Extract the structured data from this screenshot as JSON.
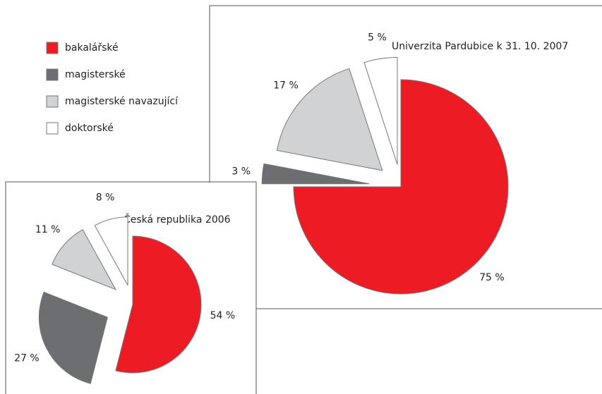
{
  "legend": {
    "categories": [
      "bakalářské",
      "magisterské",
      "magisterské navazující",
      "doktorské"
    ],
    "colors": [
      "#ed1c24",
      "#6d6e71",
      "#d1d2d4",
      "#ffffff"
    ]
  },
  "chart_data": [
    {
      "type": "pie",
      "title": "Univerzita Pardubice k 31. 10. 2007",
      "values": [
        75,
        3,
        17,
        5
      ],
      "value_labels": [
        "75 %",
        "3 %",
        "17 %",
        "5 %"
      ]
    },
    {
      "type": "pie",
      "title": "Česká republika 2006",
      "values": [
        54,
        27,
        11,
        8
      ],
      "value_labels": [
        "54 %",
        "27 %",
        "11 %",
        "8 %"
      ]
    }
  ]
}
